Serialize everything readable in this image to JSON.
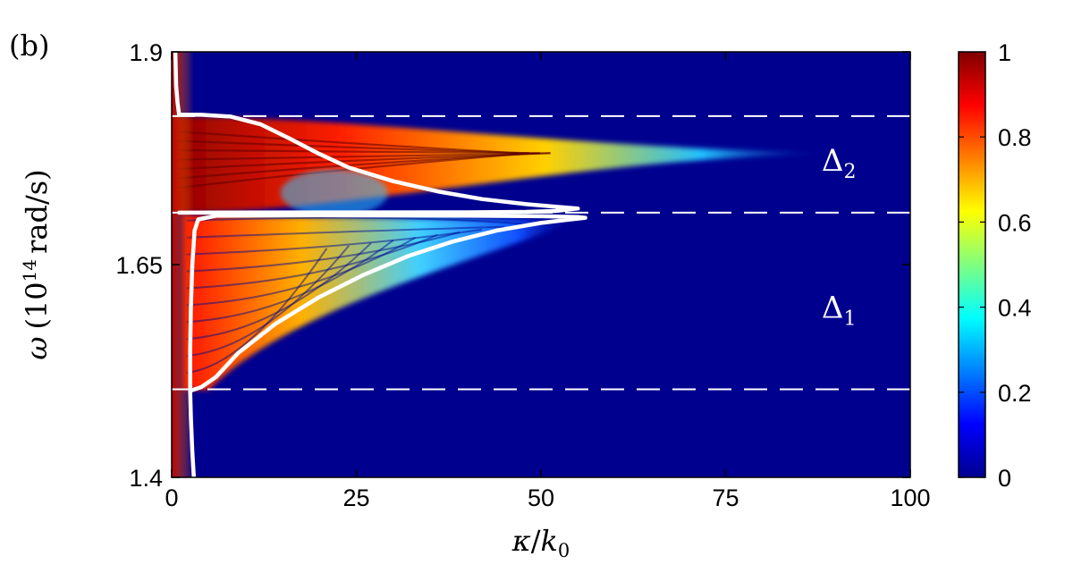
{
  "panel_label": "(b)",
  "chart_data": {
    "type": "heatmap",
    "title": "",
    "xlabel": {
      "symbol": "κ",
      "sep": "/",
      "base": "k",
      "sub": "0"
    },
    "ylabel": {
      "symbol": "ω",
      "open": "(10",
      "exp": "14",
      "unit": "rad/s)"
    },
    "xlim": [
      0,
      100
    ],
    "ylim": [
      1.4,
      1.9
    ],
    "xticks": [
      0,
      25,
      50,
      75,
      100
    ],
    "yticks": [
      1.4,
      1.65,
      1.9
    ],
    "colorbar": {
      "range": [
        0,
        1
      ],
      "ticks": [
        "0",
        "0.2",
        "0.4",
        "0.6",
        "0.8",
        "1"
      ],
      "colormap": "jet",
      "colors": [
        "#00008f",
        "#0000ff",
        "#00ffff",
        "#ffff00",
        "#ff0000",
        "#800000"
      ]
    },
    "background_color": "#00008f",
    "reference_lines": [
      {
        "omega": 1.8245,
        "style": "dashed",
        "color": "#ffffff"
      },
      {
        "omega": 1.711,
        "style": "dashed",
        "color": "#ffffff"
      },
      {
        "omega": 1.5035,
        "style": "dashed",
        "color": "#ffffff"
      }
    ],
    "annotations": [
      {
        "base": "Δ",
        "sub": "2",
        "kappa": 88,
        "omega": 1.773
      },
      {
        "base": "Δ",
        "sub": "1",
        "kappa": 88,
        "omega": 1.6
      }
    ],
    "series": [
      {
        "kind": "boundary-curve",
        "color": "#ffffff",
        "points": [
          [
            0.5,
            1.9
          ],
          [
            0.6,
            1.86
          ],
          [
            0.8,
            1.84
          ],
          [
            1,
            1.826
          ],
          [
            4,
            1.826
          ],
          [
            8,
            1.824
          ],
          [
            12,
            1.815
          ],
          [
            16,
            1.798
          ],
          [
            20,
            1.78
          ],
          [
            24,
            1.764
          ],
          [
            30,
            1.748
          ],
          [
            36,
            1.736
          ],
          [
            42,
            1.727
          ],
          [
            48,
            1.721
          ],
          [
            52,
            1.718
          ],
          [
            55,
            1.716
          ],
          [
            52,
            1.713
          ],
          [
            48,
            1.712
          ],
          [
            40,
            1.7115
          ],
          [
            20,
            1.7113
          ],
          [
            1,
            1.711
          ]
        ]
      },
      {
        "kind": "boundary-curve",
        "color": "#ffffff",
        "points": [
          [
            3,
            1.4
          ],
          [
            2.8,
            1.43
          ],
          [
            2.6,
            1.47
          ],
          [
            2.5,
            1.5
          ],
          [
            2.5,
            1.55
          ],
          [
            2.6,
            1.6
          ],
          [
            2.8,
            1.65
          ],
          [
            3.1,
            1.69
          ],
          [
            3.6,
            1.703
          ],
          [
            6,
            1.7075
          ],
          [
            20,
            1.708
          ],
          [
            40,
            1.7075
          ],
          [
            50,
            1.7068
          ],
          [
            55,
            1.706
          ],
          [
            56,
            1.705
          ],
          [
            54,
            1.703
          ],
          [
            50,
            1.699
          ],
          [
            44,
            1.69
          ],
          [
            38,
            1.677
          ],
          [
            32,
            1.66
          ],
          [
            26,
            1.638
          ],
          [
            20,
            1.612
          ],
          [
            14,
            1.58
          ],
          [
            9,
            1.546
          ],
          [
            6,
            1.518
          ],
          [
            4,
            1.506
          ],
          [
            2.6,
            1.502
          ]
        ]
      }
    ],
    "intensity_regions": [
      {
        "name": "upper-band-tongue",
        "kappa_range": [
          0,
          92
        ],
        "omega_range": [
          1.711,
          1.824
        ],
        "peak_omega": 1.781,
        "max_value": 1
      },
      {
        "name": "lower-band-tongue",
        "kappa_range": [
          0,
          55
        ],
        "omega_range": [
          1.503,
          1.708
        ],
        "max_value": 1
      },
      {
        "name": "left-edge-strip",
        "kappa_range": [
          0,
          3
        ],
        "omega_range": [
          1.4,
          1.9
        ],
        "max_value": 1
      }
    ]
  }
}
